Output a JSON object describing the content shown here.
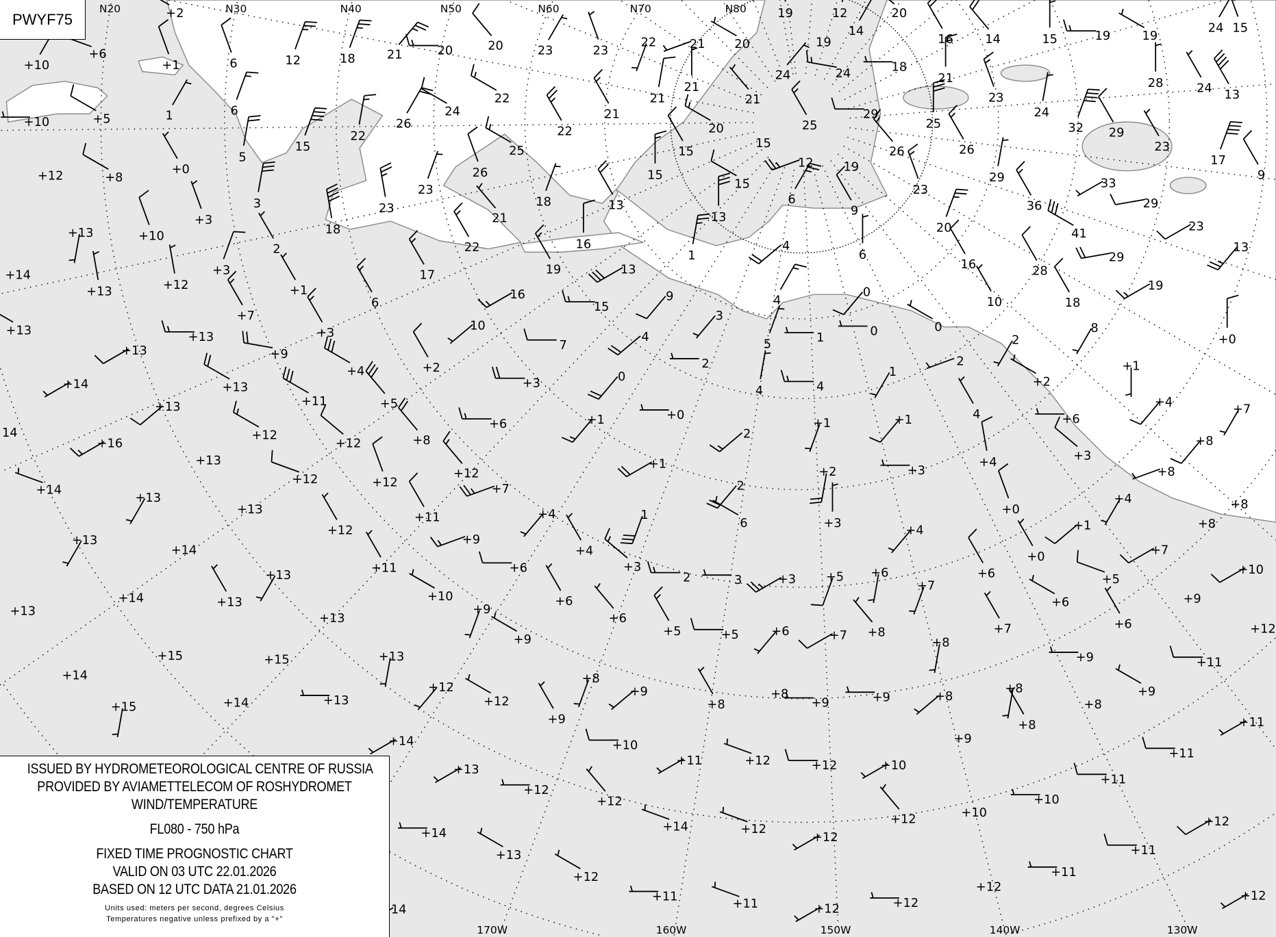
{
  "chart_code": "PWYF75",
  "legend": {
    "line1": "ISSUED BY HYDROMETEOROLOGICAL CENTRE OF RUSSIA",
    "line2": "PROVIDED BY AVIAMETTELECOM OF ROSHYDROMET",
    "line3": "WIND/TEMPERATURE",
    "level": "FL080 - 750 hPa",
    "chart_type": "FIXED TIME PROGNOSTIC CHART",
    "valid": "VALID ON 03 UTC 22.01.2026",
    "based": "BASED ON 12 UTC DATA 21.01.2026",
    "units": "Units used: meters per second, degrees Celsius",
    "note": "Temperatures negative unless prefixed by a \"+\""
  },
  "colors": {
    "sea": "#e8e8e8",
    "land": "#ffffff",
    "coast": "#8a8a8a",
    "ink": "#000000"
  },
  "map": {
    "projection": "polar stereographic",
    "lat_labels": [
      "N20",
      "N30",
      "N40",
      "N50",
      "N60",
      "N70",
      "N80"
    ],
    "lon_labels": [
      "170W",
      "160W",
      "150W",
      "140W",
      "130W"
    ],
    "station_format": [
      "temperature",
      "wind_direction_deg",
      "wind_speed_mps"
    ],
    "stations": [
      [
        "+2",
        300,
        10
      ],
      [
        "+6",
        290,
        10
      ],
      [
        "+1",
        340,
        10
      ],
      [
        "6",
        340,
        10
      ],
      [
        "12",
        20,
        25
      ],
      [
        "18",
        20,
        25
      ],
      [
        "21",
        40,
        25
      ],
      [
        "20",
        270,
        15
      ],
      [
        "20",
        320,
        10
      ],
      [
        "23",
        30,
        5
      ],
      [
        "23",
        340,
        5
      ],
      [
        "22",
        200,
        5
      ],
      [
        "21",
        250,
        5
      ],
      [
        "20",
        300,
        5
      ],
      [
        "19",
        0,
        5
      ],
      [
        "12",
        20,
        5
      ],
      [
        "20",
        310,
        25
      ],
      [
        "14",
        30,
        5
      ],
      [
        "19",
        0,
        0
      ],
      [
        "16",
        330,
        20
      ],
      [
        "14",
        320,
        20
      ],
      [
        "15",
        0,
        15
      ],
      [
        "19",
        270,
        15
      ],
      [
        "19",
        300,
        5
      ],
      [
        "24",
        30,
        25
      ],
      [
        "15",
        340,
        10
      ],
      [
        "+10",
        30,
        5
      ],
      [
        "+10",
        270,
        5
      ],
      [
        "+5",
        300,
        10
      ],
      [
        "1",
        30,
        5
      ],
      [
        "6",
        20,
        15
      ],
      [
        "22",
        10,
        15
      ],
      [
        "26",
        30,
        20
      ],
      [
        "24",
        300,
        10
      ],
      [
        "22",
        300,
        15
      ],
      [
        "21",
        330,
        15
      ],
      [
        "21",
        10,
        10
      ],
      [
        "21",
        0,
        5
      ],
      [
        "21",
        320,
        5
      ],
      [
        "24",
        40,
        5
      ],
      [
        "24",
        280,
        15
      ],
      [
        "18",
        270,
        5
      ],
      [
        "21",
        0,
        15
      ],
      [
        "23",
        340,
        15
      ],
      [
        "24",
        10,
        5
      ],
      [
        "28",
        0,
        5
      ],
      [
        "24",
        330,
        5
      ],
      [
        "13",
        330,
        40
      ],
      [
        "+0",
        330,
        5
      ],
      [
        "5",
        10,
        20
      ],
      [
        "15",
        20,
        40
      ],
      [
        "25",
        300,
        15
      ],
      [
        "22",
        330,
        25
      ],
      [
        "20",
        300,
        15
      ],
      [
        "25",
        330,
        15
      ],
      [
        "29",
        270,
        10
      ],
      [
        "25",
        0,
        30
      ],
      [
        "32",
        20,
        40
      ],
      [
        "29",
        330,
        10
      ],
      [
        "23",
        330,
        5
      ],
      [
        "26",
        320,
        15
      ],
      [
        "26",
        330,
        15
      ],
      [
        "15",
        0,
        0
      ],
      [
        "15",
        330,
        10
      ],
      [
        "15",
        0,
        15
      ],
      [
        "12",
        250,
        25
      ],
      [
        "19",
        0,
        0
      ],
      [
        "29",
        10,
        5
      ],
      [
        "17",
        20,
        40
      ],
      [
        "9",
        330,
        10
      ],
      [
        "+12",
        0,
        0
      ],
      [
        "+8",
        300,
        10
      ],
      [
        "26",
        340,
        10
      ],
      [
        "23",
        20,
        5
      ],
      [
        "15",
        300,
        10
      ],
      [
        "13",
        0,
        30
      ],
      [
        "6",
        30,
        25
      ],
      [
        "9",
        330,
        10
      ],
      [
        "23",
        340,
        15
      ],
      [
        "33",
        240,
        5
      ],
      [
        "36",
        330,
        15
      ],
      [
        "29",
        260,
        10
      ],
      [
        "23",
        240,
        10
      ],
      [
        "41",
        300,
        30
      ],
      [
        "20",
        20,
        25
      ],
      [
        "13",
        220,
        25
      ],
      [
        "+3",
        340,
        5
      ],
      [
        "3",
        10,
        30
      ],
      [
        "23",
        350,
        25
      ],
      [
        "18",
        350,
        40
      ],
      [
        "21",
        320,
        5
      ],
      [
        "18",
        20,
        5
      ],
      [
        "13",
        330,
        20
      ],
      [
        "+10",
        340,
        10
      ],
      [
        "+13",
        190,
        5
      ],
      [
        "2",
        330,
        5
      ],
      [
        "22",
        330,
        15
      ],
      [
        "16",
        0,
        10
      ],
      [
        "4",
        230,
        20
      ],
      [
        "6",
        0,
        5
      ],
      [
        "1",
        10,
        25
      ],
      [
        "29",
        260,
        20
      ],
      [
        "28",
        330,
        10
      ],
      [
        "16",
        330,
        10
      ],
      [
        "+14",
        0,
        0
      ],
      [
        "+3",
        20,
        10
      ],
      [
        "17",
        330,
        15
      ],
      [
        "19",
        330,
        15
      ],
      [
        "13",
        240,
        30
      ],
      [
        "+12",
        350,
        5
      ],
      [
        "+1",
        330,
        5
      ],
      [
        "6",
        330,
        15
      ],
      [
        "16",
        240,
        15
      ],
      [
        "+13",
        350,
        5
      ],
      [
        "9",
        220,
        10
      ],
      [
        "4",
        30,
        15
      ],
      [
        "0",
        220,
        10
      ],
      [
        "19",
        240,
        15
      ],
      [
        "18",
        330,
        10
      ],
      [
        "10",
        330,
        5
      ],
      [
        "+7",
        330,
        15
      ],
      [
        "15",
        270,
        15
      ],
      [
        "3",
        220,
        5
      ],
      [
        "+13",
        300,
        5
      ],
      [
        "+3",
        330,
        15
      ],
      [
        "10",
        230,
        5
      ],
      [
        "+13",
        270,
        15
      ],
      [
        "4",
        230,
        20
      ],
      [
        "7",
        270,
        10
      ],
      [
        "5",
        20,
        5
      ],
      [
        "1",
        270,
        5
      ],
      [
        "0",
        270,
        5
      ],
      [
        "0",
        300,
        5
      ],
      [
        "8",
        210,
        5
      ],
      [
        "+0",
        0,
        10
      ],
      [
        "2",
        210,
        5
      ],
      [
        "+13",
        240,
        10
      ],
      [
        "+9",
        280,
        20
      ],
      [
        "+2",
        330,
        10
      ],
      [
        "+4",
        300,
        30
      ],
      [
        "2",
        270,
        5
      ],
      [
        "2",
        250,
        5
      ],
      [
        "+1",
        180,
        5
      ],
      [
        "0",
        220,
        20
      ],
      [
        "+3",
        270,
        20
      ],
      [
        "+14",
        240,
        5
      ],
      [
        "+13",
        300,
        20
      ],
      [
        "4",
        270,
        15
      ],
      [
        "4",
        10,
        5
      ],
      [
        "1",
        210,
        5
      ],
      [
        "+2",
        300,
        5
      ],
      [
        "+11",
        300,
        30
      ],
      [
        "+5",
        320,
        30
      ],
      [
        "+13",
        230,
        10
      ],
      [
        "+0",
        270,
        5
      ],
      [
        "+1",
        220,
        15
      ],
      [
        "+6",
        270,
        15
      ],
      [
        "4",
        330,
        5
      ],
      [
        "+4",
        220,
        10
      ],
      [
        "+6",
        270,
        5
      ],
      [
        "+7",
        210,
        5
      ],
      [
        "14",
        0,
        0
      ],
      [
        "+12",
        300,
        15
      ],
      [
        "+1",
        200,
        5
      ],
      [
        "+1",
        220,
        10
      ],
      [
        "2",
        230,
        15
      ],
      [
        "+8",
        320,
        20
      ],
      [
        "+12",
        310,
        10
      ],
      [
        "+8",
        220,
        10
      ],
      [
        "+16",
        240,
        15
      ],
      [
        "+13",
        0,
        0
      ],
      [
        "+1",
        240,
        20
      ],
      [
        "+12",
        320,
        15
      ],
      [
        "+12",
        290,
        10
      ],
      [
        "+2",
        190,
        20
      ],
      [
        "+3",
        270,
        5
      ],
      [
        "+4",
        350,
        10
      ],
      [
        "+3",
        310,
        10
      ],
      [
        "+8",
        250,
        5
      ],
      [
        "2",
        220,
        20
      ],
      [
        "+12",
        340,
        10
      ],
      [
        "+7",
        250,
        25
      ],
      [
        "+14",
        290,
        5
      ],
      [
        "+13",
        210,
        5
      ],
      [
        "+4",
        210,
        5
      ],
      [
        "+8",
        0,
        0
      ],
      [
        "+13",
        0,
        0
      ],
      [
        "+0",
        340,
        10
      ],
      [
        "+4",
        220,
        5
      ],
      [
        "+11",
        330,
        10
      ],
      [
        "1",
        200,
        30
      ],
      [
        "6",
        300,
        5
      ],
      [
        "+3",
        0,
        5
      ],
      [
        "+4",
        220,
        5
      ],
      [
        "+1",
        230,
        10
      ],
      [
        "+8",
        0,
        0
      ],
      [
        "+12",
        330,
        5
      ],
      [
        "+13",
        210,
        5
      ],
      [
        "+9",
        250,
        15
      ],
      [
        "+4",
        330,
        5
      ],
      [
        "+0",
        330,
        5
      ],
      [
        "+7",
        240,
        10
      ],
      [
        "+14",
        0,
        0
      ],
      [
        "+6",
        270,
        10
      ],
      [
        "+3",
        310,
        15
      ],
      [
        "+11",
        330,
        5
      ],
      [
        "2",
        270,
        15
      ],
      [
        "3",
        270,
        5
      ],
      [
        "+3",
        240,
        25
      ],
      [
        "+5",
        200,
        10
      ],
      [
        "+6",
        190,
        5
      ],
      [
        "+7",
        200,
        5
      ],
      [
        "+6",
        330,
        10
      ],
      [
        "+5",
        290,
        10
      ],
      [
        "+10",
        240,
        10
      ],
      [
        "+13",
        210,
        5
      ],
      [
        "+10",
        300,
        5
      ],
      [
        "+6",
        330,
        5
      ],
      [
        "+14",
        0,
        0
      ],
      [
        "+13",
        330,
        5
      ],
      [
        "+6",
        300,
        5
      ],
      [
        "+9",
        0,
        0
      ],
      [
        "+13",
        0,
        0
      ],
      [
        "+9",
        200,
        5
      ],
      [
        "+6",
        320,
        5
      ],
      [
        "+13",
        0,
        0
      ],
      [
        "+5",
        330,
        15
      ],
      [
        "+5",
        270,
        10
      ],
      [
        "+6",
        220,
        5
      ],
      [
        "+7",
        240,
        10
      ],
      [
        "+8",
        320,
        5
      ],
      [
        "+8",
        190,
        5
      ],
      [
        "+7",
        330,
        5
      ],
      [
        "+6",
        330,
        5
      ],
      [
        "+12",
        0,
        0
      ],
      [
        "+9",
        300,
        5
      ],
      [
        "+15",
        0,
        0
      ],
      [
        "+13",
        190,
        5
      ],
      [
        "+15",
        0,
        0
      ],
      [
        "+9",
        270,
        5
      ],
      [
        "+11",
        270,
        10
      ],
      [
        "+14",
        0,
        0
      ],
      [
        "+8",
        200,
        5
      ],
      [
        "+12",
        220,
        5
      ],
      [
        "+9",
        230,
        5
      ],
      [
        "+8",
        190,
        5
      ],
      [
        "+8",
        0,
        0
      ],
      [
        "+8",
        230,
        5
      ],
      [
        "+9",
        300,
        5
      ],
      [
        "+13",
        270,
        5
      ],
      [
        "+12",
        300,
        5
      ],
      [
        "+14",
        0,
        0
      ],
      [
        "+15",
        190,
        5
      ],
      [
        "+8",
        330,
        5
      ],
      [
        "+9",
        270,
        5
      ],
      [
        "+9",
        270,
        5
      ],
      [
        "+8",
        0,
        0
      ],
      [
        "+9",
        330,
        5
      ],
      [
        "+11",
        240,
        5
      ],
      [
        "+8",
        330,
        5
      ],
      [
        "+14",
        240,
        5
      ],
      [
        "+10",
        270,
        10
      ],
      [
        "+9",
        0,
        0
      ],
      [
        "+11",
        270,
        10
      ],
      [
        "+11",
        240,
        5
      ],
      [
        "+12",
        290,
        5
      ],
      [
        "+12",
        270,
        10
      ],
      [
        "+10",
        240,
        5
      ],
      [
        "+13",
        240,
        5
      ],
      [
        "+11",
        270,
        10
      ],
      [
        "+12",
        270,
        5
      ],
      [
        "+12",
        320,
        5
      ],
      [
        "+10",
        270,
        5
      ],
      [
        "+10",
        0,
        0
      ],
      [
        "+12",
        320,
        5
      ],
      [
        "+12",
        240,
        10
      ],
      [
        "+14",
        290,
        5
      ],
      [
        "+12",
        290,
        5
      ],
      [
        "+12",
        240,
        5
      ],
      [
        "+14",
        270,
        5
      ],
      [
        "+11",
        270,
        10
      ],
      [
        "+13",
        300,
        5
      ],
      [
        "+12",
        300,
        5
      ],
      [
        "+11",
        270,
        5
      ],
      [
        "+12",
        0,
        0
      ],
      [
        "+11",
        270,
        5
      ],
      [
        "+11",
        290,
        5
      ],
      [
        "+12",
        240,
        5
      ],
      [
        "+12",
        270,
        5
      ],
      [
        "+12",
        240,
        5
      ],
      [
        "14",
        240,
        5
      ]
    ]
  }
}
